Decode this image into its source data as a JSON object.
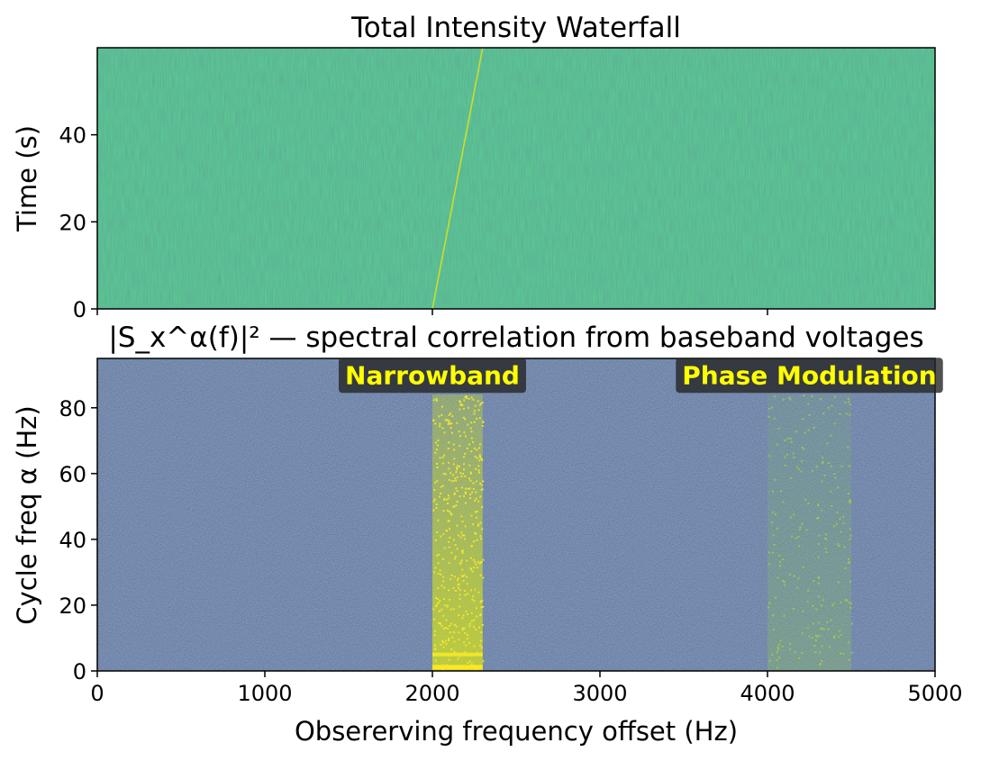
{
  "chart_data": [
    {
      "type": "heatmap",
      "title": "Total Intensity Waterfall",
      "xlabel": "",
      "ylabel": "Time (s)",
      "xlim": [
        0,
        5000
      ],
      "ylim": [
        0,
        60
      ],
      "xticks": [
        0,
        2000,
        4000
      ],
      "xticklabels": [
        "",
        "",
        ""
      ],
      "yticks": [
        0,
        20,
        40
      ],
      "colormap": "viridis",
      "features": [
        {
          "kind": "drifting-line",
          "x_start": 2000,
          "y_start": 0,
          "x_end": 2300,
          "y_end": 60
        }
      ]
    },
    {
      "type": "heatmap",
      "title": "|S_x^α(f)|² — spectral correlation from baseband voltages",
      "xlabel": "Obsererving frequency offset (Hz)",
      "ylabel": "Cycle freq α (Hz)",
      "xlim": [
        0,
        5000
      ],
      "ylim": [
        0,
        95
      ],
      "xticks": [
        0,
        1000,
        2000,
        3000,
        4000,
        5000
      ],
      "yticks": [
        0,
        20,
        40,
        60,
        80
      ],
      "colormap": "viridis",
      "features": [
        {
          "kind": "band",
          "x_start": 2000,
          "x_end": 2300,
          "strength": "strong"
        },
        {
          "kind": "band",
          "x_start": 4000,
          "x_end": 4500,
          "strength": "weak"
        }
      ],
      "annotations": [
        {
          "text": "Narrowband",
          "x": 2000,
          "y": 90
        },
        {
          "text": "Phase Modulation",
          "x": 4250,
          "y": 90
        }
      ]
    }
  ]
}
